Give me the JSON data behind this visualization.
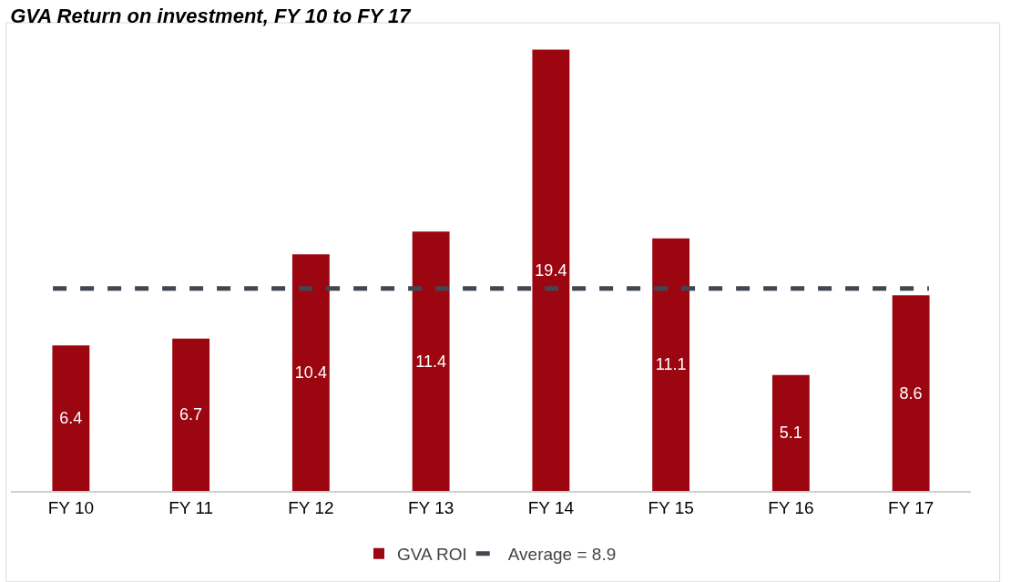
{
  "chart_data": {
    "type": "bar",
    "title": "GVA Return on investment, FY 10 to FY 17",
    "categories": [
      "FY 10",
      "FY 11",
      "FY 12",
      "FY 13",
      "FY 14",
      "FY 15",
      "FY 16",
      "FY 17"
    ],
    "series": [
      {
        "name": "GVA ROI",
        "color": "#9b0610",
        "values": [
          6.4,
          6.7,
          10.4,
          11.4,
          19.4,
          11.1,
          5.1,
          8.6
        ]
      }
    ],
    "data_labels": true,
    "ref_lines": [
      {
        "axis": "y",
        "value": 8.9,
        "label": "Average = 8.9",
        "color": "#404752",
        "line_style": "dashed"
      }
    ],
    "legend": "bottom",
    "grid": false
  }
}
